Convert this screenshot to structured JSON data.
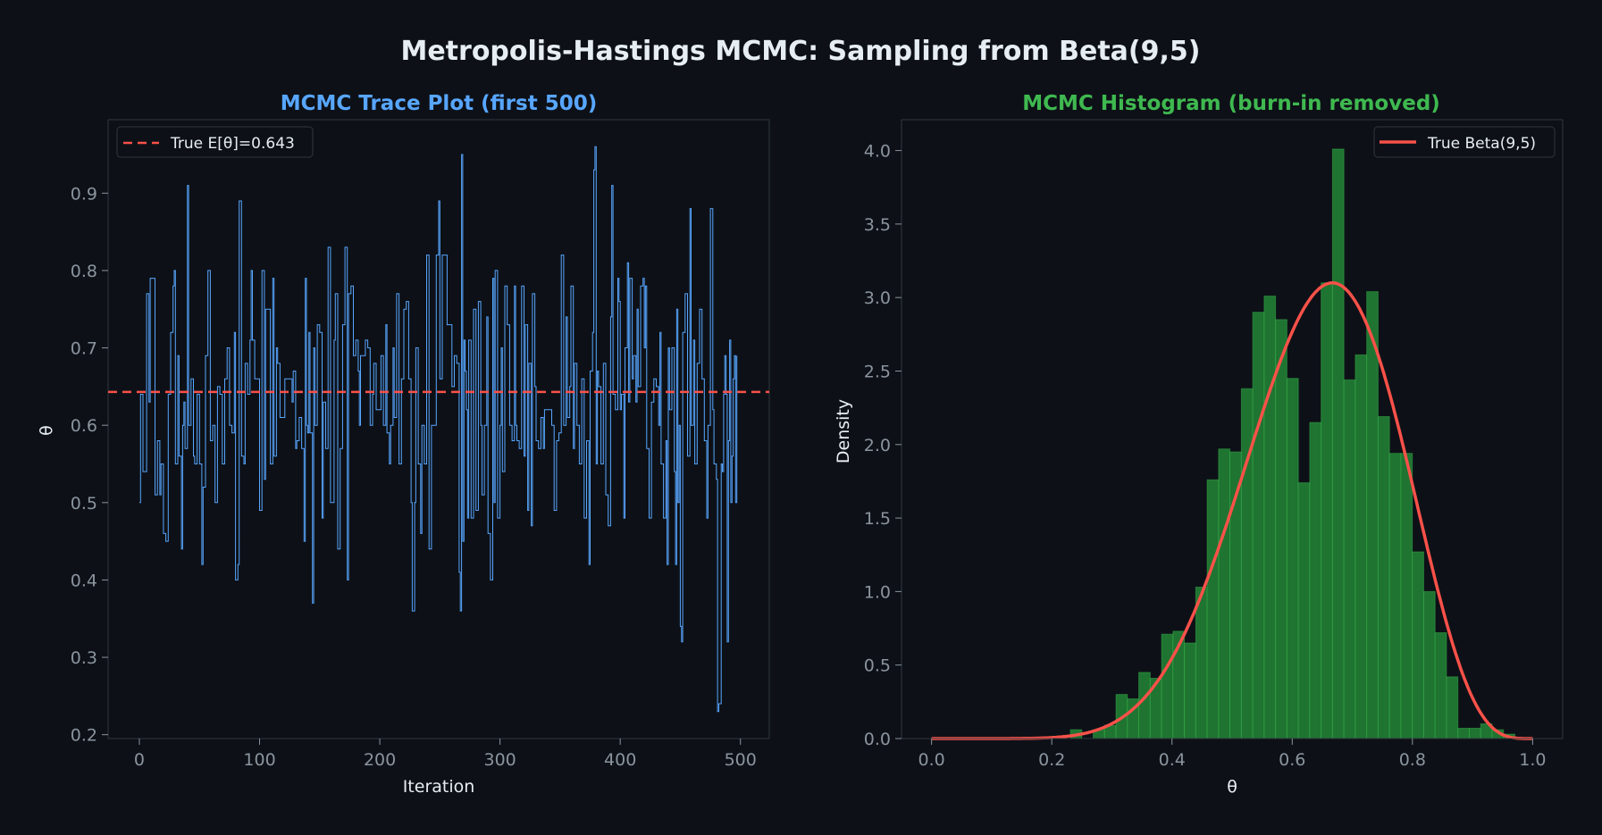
{
  "figure": {
    "title": "Metropolis-Hastings MCMC: Sampling from Beta(9,5)",
    "background": "#0d1117"
  },
  "colors": {
    "axes_bg": "#0d1117",
    "spine": "#30363d",
    "tick_text": "#8b949e",
    "label_text": "#e6edf3",
    "trace": "#58a6ff",
    "mean_line": "#f85149",
    "bar_fill": "#238636",
    "bar_edge": "#3fb950",
    "beta_curve": "#f85149",
    "trace_title": "#58a6ff",
    "hist_title": "#3fb950"
  },
  "chart_data": [
    {
      "type": "line",
      "title": "MCMC Trace Plot (first 500)",
      "xlabel": "Iteration",
      "ylabel": "θ",
      "xlim": [
        -26,
        524
      ],
      "ylim": [
        0.195,
        0.995
      ],
      "xticks": [
        0,
        100,
        200,
        300,
        400,
        500
      ],
      "yticks": [
        0.2,
        0.3,
        0.4,
        0.5,
        0.6,
        0.7,
        0.8,
        0.9
      ],
      "ytick_labels": [
        "0.2",
        "0.3",
        "0.4",
        "0.5",
        "0.6",
        "0.7",
        "0.8",
        "0.9"
      ],
      "grid": false,
      "legend": {
        "position": "upper-left",
        "entries": [
          "True E[θ]=0.643"
        ]
      },
      "reference_line": {
        "y": 0.643,
        "style": "dashed",
        "label": "True E[θ]=0.643"
      },
      "trace_keypoints": [
        [
          0,
          0.5
        ],
        [
          1,
          0.64
        ],
        [
          3,
          0.54
        ],
        [
          5,
          0.54
        ],
        [
          6,
          0.77
        ],
        [
          8,
          0.63
        ],
        [
          9,
          0.79
        ],
        [
          12,
          0.79
        ],
        [
          13,
          0.51
        ],
        [
          15,
          0.58
        ],
        [
          17,
          0.51
        ],
        [
          18,
          0.55
        ],
        [
          20,
          0.46
        ],
        [
          22,
          0.45
        ],
        [
          24,
          0.64
        ],
        [
          26,
          0.72
        ],
        [
          28,
          0.78
        ],
        [
          29,
          0.8
        ],
        [
          30,
          0.55
        ],
        [
          32,
          0.69
        ],
        [
          33,
          0.56
        ],
        [
          35,
          0.44
        ],
        [
          36,
          0.6
        ],
        [
          37,
          0.63
        ],
        [
          38,
          0.57
        ],
        [
          40,
          0.91
        ],
        [
          41,
          0.6
        ],
        [
          43,
          0.66
        ],
        [
          45,
          0.56
        ],
        [
          46,
          0.55
        ],
        [
          48,
          0.64
        ],
        [
          50,
          0.55
        ],
        [
          52,
          0.42
        ],
        [
          53,
          0.52
        ],
        [
          55,
          0.69
        ],
        [
          57,
          0.8
        ],
        [
          59,
          0.58
        ],
        [
          61,
          0.6
        ],
        [
          63,
          0.5
        ],
        [
          65,
          0.65
        ],
        [
          67,
          0.64
        ],
        [
          69,
          0.55
        ],
        [
          71,
          0.66
        ],
        [
          73,
          0.7
        ],
        [
          75,
          0.6
        ],
        [
          77,
          0.59
        ],
        [
          79,
          0.72
        ],
        [
          80,
          0.4
        ],
        [
          82,
          0.42
        ],
        [
          83,
          0.89
        ],
        [
          85,
          0.56
        ],
        [
          87,
          0.55
        ],
        [
          88,
          0.68
        ],
        [
          90,
          0.64
        ],
        [
          92,
          0.71
        ],
        [
          93,
          0.8
        ],
        [
          94,
          0.71
        ],
        [
          96,
          0.66
        ],
        [
          98,
          0.66
        ],
        [
          100,
          0.49
        ],
        [
          102,
          0.8
        ],
        [
          104,
          0.53
        ],
        [
          105,
          0.75
        ],
        [
          108,
          0.75
        ],
        [
          109,
          0.55
        ],
        [
          111,
          0.79
        ],
        [
          112,
          0.56
        ],
        [
          114,
          0.7
        ],
        [
          115,
          0.68
        ],
        [
          117,
          0.61
        ],
        [
          118,
          0.61
        ],
        [
          121,
          0.66
        ],
        [
          125,
          0.66
        ],
        [
          127,
          0.63
        ],
        [
          128,
          0.67
        ],
        [
          130,
          0.57
        ],
        [
          131,
          0.58
        ],
        [
          133,
          0.61
        ],
        [
          135,
          0.57
        ],
        [
          137,
          0.45
        ],
        [
          138,
          0.79
        ],
        [
          139,
          0.6
        ],
        [
          140,
          0.59
        ],
        [
          141,
          0.72
        ],
        [
          142,
          0.59
        ],
        [
          144,
          0.37
        ],
        [
          145,
          0.7
        ],
        [
          146,
          0.6
        ],
        [
          148,
          0.73
        ],
        [
          150,
          0.72
        ],
        [
          152,
          0.48
        ],
        [
          153,
          0.63
        ],
        [
          155,
          0.57
        ],
        [
          157,
          0.83
        ],
        [
          159,
          0.5
        ],
        [
          162,
          0.71
        ],
        [
          163,
          0.77
        ],
        [
          165,
          0.44
        ],
        [
          167,
          0.57
        ],
        [
          169,
          0.73
        ],
        [
          171,
          0.83
        ],
        [
          173,
          0.4
        ],
        [
          174,
          0.77
        ],
        [
          176,
          0.78
        ],
        [
          178,
          0.69
        ],
        [
          180,
          0.71
        ],
        [
          182,
          0.67
        ],
        [
          183,
          0.6
        ],
        [
          184,
          0.69
        ],
        [
          186,
          0.69
        ],
        [
          188,
          0.71
        ],
        [
          190,
          0.7
        ],
        [
          192,
          0.6
        ],
        [
          194,
          0.64
        ],
        [
          195,
          0.68
        ],
        [
          197,
          0.62
        ],
        [
          199,
          0.62
        ],
        [
          201,
          0.69
        ],
        [
          203,
          0.6
        ],
        [
          205,
          0.73
        ],
        [
          206,
          0.59
        ],
        [
          208,
          0.55
        ],
        [
          209,
          0.6
        ],
        [
          211,
          0.7
        ],
        [
          212,
          0.61
        ],
        [
          214,
          0.77
        ],
        [
          216,
          0.55
        ],
        [
          218,
          0.66
        ],
        [
          220,
          0.75
        ],
        [
          222,
          0.76
        ],
        [
          224,
          0.66
        ],
        [
          226,
          0.5
        ],
        [
          227,
          0.36
        ],
        [
          229,
          0.5
        ],
        [
          230,
          0.7
        ],
        [
          232,
          0.55
        ],
        [
          234,
          0.46
        ],
        [
          235,
          0.6
        ],
        [
          237,
          0.55
        ],
        [
          239,
          0.82
        ],
        [
          241,
          0.44
        ],
        [
          243,
          0.6
        ],
        [
          245,
          0.6
        ],
        [
          247,
          0.82
        ],
        [
          249,
          0.89
        ],
        [
          250,
          0.66
        ],
        [
          252,
          0.82
        ],
        [
          254,
          0.82
        ],
        [
          256,
          0.73
        ],
        [
          258,
          0.73
        ],
        [
          260,
          0.65
        ],
        [
          262,
          0.69
        ],
        [
          264,
          0.68
        ],
        [
          266,
          0.41
        ],
        [
          267,
          0.36
        ],
        [
          268,
          0.95
        ],
        [
          269,
          0.45
        ],
        [
          270,
          0.71
        ],
        [
          271,
          0.67
        ],
        [
          272,
          0.62
        ],
        [
          273,
          0.48
        ],
        [
          274,
          0.71
        ],
        [
          276,
          0.48
        ],
        [
          278,
          0.75
        ],
        [
          280,
          0.49
        ],
        [
          282,
          0.76
        ],
        [
          284,
          0.6
        ],
        [
          285,
          0.51
        ],
        [
          287,
          0.6
        ],
        [
          289,
          0.74
        ],
        [
          290,
          0.46
        ],
        [
          292,
          0.4
        ],
        [
          294,
          0.79
        ],
        [
          295,
          0.5
        ],
        [
          296,
          0.8
        ],
        [
          298,
          0.48
        ],
        [
          300,
          0.6
        ],
        [
          301,
          0.7
        ],
        [
          302,
          0.54
        ],
        [
          304,
          0.78
        ],
        [
          306,
          0.73
        ],
        [
          308,
          0.6
        ],
        [
          310,
          0.58
        ],
        [
          312,
          0.78
        ],
        [
          313,
          0.6
        ],
        [
          314,
          0.58
        ],
        [
          316,
          0.57
        ],
        [
          318,
          0.78
        ],
        [
          320,
          0.56
        ],
        [
          321,
          0.73
        ],
        [
          323,
          0.49
        ],
        [
          324,
          0.68
        ],
        [
          326,
          0.47
        ],
        [
          327,
          0.77
        ],
        [
          329,
          0.65
        ],
        [
          330,
          0.58
        ],
        [
          332,
          0.57
        ],
        [
          334,
          0.61
        ],
        [
          336,
          0.57
        ],
        [
          337,
          0.62
        ],
        [
          339,
          0.62
        ],
        [
          341,
          0.62
        ],
        [
          343,
          0.6
        ],
        [
          345,
          0.49
        ],
        [
          347,
          0.58
        ],
        [
          349,
          0.59
        ],
        [
          351,
          0.82
        ],
        [
          353,
          0.6
        ],
        [
          355,
          0.74
        ],
        [
          356,
          0.61
        ],
        [
          358,
          0.65
        ],
        [
          359,
          0.78
        ],
        [
          361,
          0.57
        ],
        [
          362,
          0.68
        ],
        [
          364,
          0.6
        ],
        [
          366,
          0.55
        ],
        [
          368,
          0.66
        ],
        [
          370,
          0.48
        ],
        [
          372,
          0.58
        ],
        [
          374,
          0.42
        ],
        [
          375,
          0.67
        ],
        [
          377,
          0.72
        ],
        [
          378,
          0.93
        ],
        [
          379,
          0.96
        ],
        [
          380,
          0.55
        ],
        [
          381,
          0.67
        ],
        [
          382,
          0.65
        ],
        [
          384,
          0.55
        ],
        [
          386,
          0.68
        ],
        [
          388,
          0.51
        ],
        [
          390,
          0.47
        ],
        [
          392,
          0.74
        ],
        [
          393,
          0.91
        ],
        [
          394,
          0.64
        ],
        [
          396,
          0.62
        ],
        [
          398,
          0.79
        ],
        [
          399,
          0.76
        ],
        [
          400,
          0.62
        ],
        [
          401,
          0.64
        ],
        [
          403,
          0.48
        ],
        [
          404,
          0.7
        ],
        [
          406,
          0.81
        ],
        [
          407,
          0.63
        ],
        [
          408,
          0.79
        ],
        [
          410,
          0.66
        ],
        [
          411,
          0.69
        ],
        [
          413,
          0.63
        ],
        [
          414,
          0.75
        ],
        [
          415,
          0.65
        ],
        [
          417,
          0.78
        ],
        [
          419,
          0.79
        ],
        [
          420,
          0.7
        ],
        [
          421,
          0.78
        ],
        [
          422,
          0.57
        ],
        [
          424,
          0.48
        ],
        [
          426,
          0.63
        ],
        [
          428,
          0.66
        ],
        [
          430,
          0.65
        ],
        [
          432,
          0.6
        ],
        [
          433,
          0.72
        ],
        [
          434,
          0.55
        ],
        [
          436,
          0.48
        ],
        [
          438,
          0.58
        ],
        [
          439,
          0.42
        ],
        [
          440,
          0.7
        ],
        [
          441,
          0.62
        ],
        [
          443,
          0.7
        ],
        [
          445,
          0.54
        ],
        [
          446,
          0.42
        ],
        [
          447,
          0.75
        ],
        [
          448,
          0.5
        ],
        [
          449,
          0.6
        ],
        [
          450,
          0.34
        ],
        [
          451,
          0.32
        ],
        [
          452,
          0.72
        ],
        [
          454,
          0.77
        ],
        [
          456,
          0.56
        ],
        [
          458,
          0.88
        ],
        [
          459,
          0.6
        ],
        [
          461,
          0.71
        ],
        [
          462,
          0.55
        ],
        [
          464,
          0.68
        ],
        [
          466,
          0.75
        ],
        [
          468,
          0.66
        ],
        [
          470,
          0.58
        ],
        [
          472,
          0.48
        ],
        [
          473,
          0.6
        ],
        [
          475,
          0.88
        ],
        [
          477,
          0.62
        ],
        [
          478,
          0.55
        ],
        [
          480,
          0.53
        ],
        [
          481,
          0.23
        ],
        [
          482,
          0.24
        ],
        [
          484,
          0.55
        ],
        [
          485,
          0.54
        ],
        [
          486,
          0.64
        ],
        [
          487,
          0.69
        ],
        [
          488,
          0.64
        ],
        [
          489,
          0.32
        ],
        [
          490,
          0.58
        ],
        [
          491,
          0.71
        ],
        [
          492,
          0.5
        ],
        [
          493,
          0.56
        ],
        [
          494,
          0.66
        ],
        [
          495,
          0.69
        ],
        [
          496,
          0.5
        ],
        [
          497,
          0.69
        ]
      ]
    },
    {
      "type": "bar",
      "title": "MCMC Histogram (burn-in removed)",
      "xlabel": "θ",
      "ylabel": "Density",
      "xlim": [
        -0.05,
        1.05
      ],
      "ylim": [
        0,
        4.21
      ],
      "xticks": [
        0.0,
        0.2,
        0.4,
        0.6,
        0.8,
        1.0
      ],
      "xtick_labels": [
        "0.0",
        "0.2",
        "0.4",
        "0.6",
        "0.8",
        "1.0"
      ],
      "yticks": [
        0.0,
        0.5,
        1.0,
        1.5,
        2.0,
        2.5,
        3.0,
        3.5,
        4.0
      ],
      "ytick_labels": [
        "0.0",
        "0.5",
        "1.0",
        "1.5",
        "2.0",
        "2.5",
        "3.0",
        "3.5",
        "4.0"
      ],
      "grid": false,
      "legend": {
        "position": "upper-right",
        "entries": [
          "True Beta(9,5)"
        ]
      },
      "bin_start": 0.231,
      "bin_width": 0.01896,
      "densities": [
        0.06,
        0,
        0.06,
        0.09,
        0.3,
        0.27,
        0.45,
        0.41,
        0.71,
        0.73,
        0.65,
        1.03,
        1.76,
        1.97,
        1.95,
        2.38,
        2.9,
        3.01,
        2.85,
        2.45,
        1.74,
        2.15,
        3.1,
        4.01,
        2.44,
        2.61,
        3.04,
        2.19,
        1.94,
        1.94,
        1.27,
        1.0,
        0.72,
        0.42,
        0.07,
        0.07,
        0.1,
        0.06,
        0.03
      ],
      "curve": {
        "label": "True Beta(9,5)",
        "alpha": 9,
        "beta": 5
      }
    }
  ]
}
